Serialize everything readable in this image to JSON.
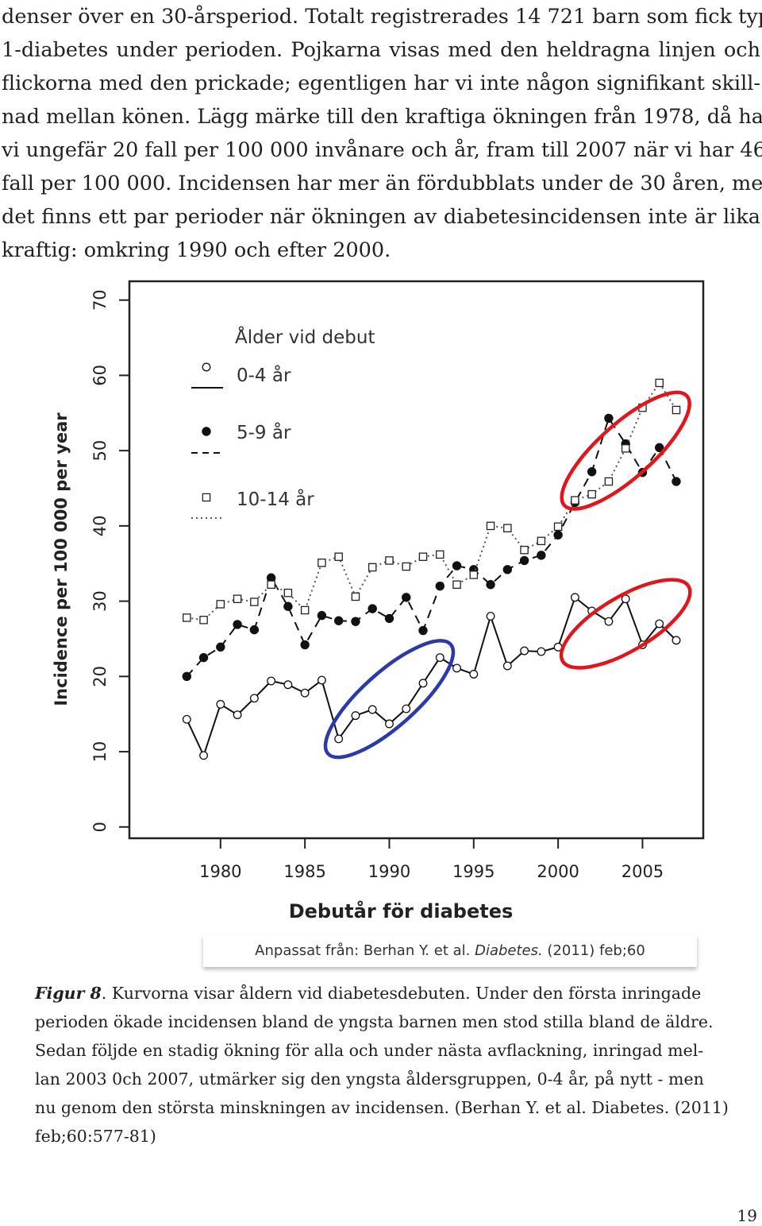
{
  "intro_lines": [
    "denser över en 30-årsperiod. Totalt registrerades 14 721 barn som fick typ",
    "1-diabetes under perioden. Pojkarna visas med den heldragna linjen och",
    "flickorna med den prickade; egentligen har vi inte någon signifikant skill-",
    "nad mellan könen. Lägg märke till den kraftiga ökningen från 1978, då hade",
    "vi ungefär 20 fall per 100 000 invånare och år, fram till 2007 när vi har 46",
    "fall per 100 000. Incidensen har mer än fördubblats under de 30 åren, men",
    "det finns ett par perioder när ökningen av diabetesincidensen inte är lika",
    "kraftig: omkring 1990 och efter 2000."
  ],
  "chart_data": {
    "type": "line",
    "title": "",
    "xlabel": "Debutår för diabetes",
    "ylabel": "Incidence per 100 000 per year",
    "xlim": [
      1974.6,
      2008.6
    ],
    "ylim": [
      -1.5,
      72.5
    ],
    "x_ticks": [
      1980,
      1985,
      1990,
      1995,
      2000,
      2005
    ],
    "y_ticks": [
      0,
      10,
      20,
      30,
      40,
      50,
      60,
      70
    ],
    "legend": {
      "title": "Ålder vid debut",
      "position": "top-left",
      "entries": [
        "0-4 år",
        "5-9 år",
        "10-14 år"
      ]
    },
    "x": [
      1978,
      1979,
      1980,
      1981,
      1982,
      1983,
      1984,
      1985,
      1986,
      1987,
      1988,
      1989,
      1990,
      1991,
      1992,
      1993,
      1994,
      1995,
      1996,
      1997,
      1998,
      1999,
      2000,
      2001,
      2002,
      2003,
      2004,
      2005,
      2006,
      2007
    ],
    "series": [
      {
        "name": "0-4 år",
        "marker": "open-circle",
        "line": "solid",
        "values": [
          14.3,
          9.5,
          16.3,
          14.9,
          17.1,
          19.4,
          18.9,
          17.8,
          19.5,
          11.7,
          14.8,
          15.6,
          13.7,
          15.7,
          19.1,
          22.5,
          21.1,
          20.3,
          28.0,
          21.4,
          23.4,
          23.3,
          23.9,
          30.5,
          28.7,
          27.3,
          30.3,
          24.2,
          27.0,
          24.8
        ]
      },
      {
        "name": "5-9 år",
        "marker": "filled-circle",
        "line": "dashed",
        "values": [
          20.0,
          22.5,
          23.9,
          26.9,
          26.2,
          33.1,
          29.3,
          24.2,
          28.1,
          27.4,
          27.3,
          29.0,
          27.7,
          30.5,
          26.1,
          32.0,
          34.7,
          34.2,
          32.2,
          34.2,
          35.4,
          36.1,
          38.8,
          43.1,
          47.2,
          54.3,
          50.9,
          47.1,
          50.4,
          45.9
        ]
      },
      {
        "name": "10-14 år",
        "marker": "open-square",
        "line": "dotted",
        "values": [
          27.8,
          27.5,
          29.6,
          30.3,
          29.9,
          32.2,
          31.1,
          28.8,
          35.1,
          35.9,
          30.6,
          34.5,
          35.4,
          34.6,
          35.9,
          36.2,
          32.2,
          33.5,
          40.0,
          39.7,
          36.8,
          38.0,
          39.9,
          43.4,
          44.2,
          45.9,
          50.3,
          55.7,
          59.0,
          55.4
        ]
      }
    ],
    "annotations": [
      {
        "shape": "ellipse",
        "color": "#2b3aa8",
        "x_range": [
          1987,
          1993
        ],
        "y_range": [
          11,
          23
        ]
      },
      {
        "shape": "ellipse",
        "color": "#e0161c",
        "x_range": [
          2001,
          2007
        ],
        "y_range": [
          44,
          56
        ]
      },
      {
        "shape": "ellipse",
        "color": "#e0161c",
        "x_range": [
          2001,
          2007
        ],
        "y_range": [
          23,
          31
        ]
      }
    ]
  },
  "source_note": {
    "prefix": "Anpassat från: Berhan Y. et al. ",
    "journal": "Diabetes.",
    "suffix": " (2011) feb;60"
  },
  "caption": {
    "fig_label": "Figur 8",
    "first_line_rest": ". Kurvorna visar åldern vid diabetesdebuten. Under den första inringade",
    "lines": [
      "perioden ökade incidensen bland de yngsta barnen men stod stilla bland de äldre.",
      "Sedan följde en stadig ökning för alla och under nästa avflackning, inringad mel-",
      "lan 2003 0ch 2007, utmärker sig den yngsta åldersgruppen, 0-4 år, på nytt - men",
      "nu genom den största minskningen av incidensen. (Berhan Y. et al. Diabetes. (2011)",
      "feb;60:577-81)"
    ]
  },
  "page_number": "19"
}
